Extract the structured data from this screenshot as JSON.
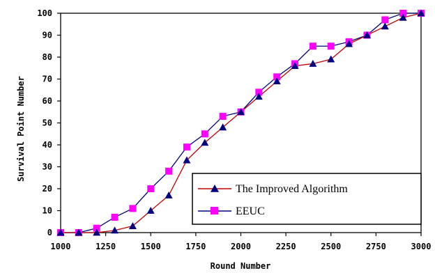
{
  "chart_data": {
    "type": "line",
    "title": "",
    "xlabel": "Round Number",
    "ylabel": "Survival Point Number",
    "xlim": [
      1000,
      3000
    ],
    "ylim": [
      0,
      100
    ],
    "x_ticks": [
      "1000",
      "1250",
      "1500",
      "1750",
      "2000",
      "2250",
      "2500",
      "2750",
      "3000"
    ],
    "x_tick_values": [
      1000,
      1250,
      1500,
      1750,
      2000,
      2250,
      2500,
      2750,
      3000
    ],
    "y_ticks": [
      "0",
      "10",
      "20",
      "30",
      "40",
      "50",
      "60",
      "70",
      "80",
      "90",
      "100"
    ],
    "y_tick_values": [
      0,
      10,
      20,
      30,
      40,
      50,
      60,
      70,
      80,
      90,
      100
    ],
    "grid": false,
    "legend_position": "bottom-right",
    "x": [
      1000,
      1100,
      1200,
      1300,
      1400,
      1500,
      1600,
      1700,
      1800,
      1900,
      2000,
      2100,
      2200,
      2300,
      2400,
      2500,
      2600,
      2700,
      2800,
      2900,
      3000
    ],
    "series": [
      {
        "name": "The Improved Algorithm",
        "color": "#c00000",
        "marker_color": "#000080",
        "marker": "triangle",
        "values": [
          0,
          0,
          0,
          1,
          3,
          10,
          17,
          33,
          41,
          48,
          55,
          62,
          69,
          76,
          77,
          79,
          86,
          90,
          94,
          98,
          100
        ]
      },
      {
        "name": "EEUC",
        "color": "#00007f",
        "marker_color": "#ff00ff",
        "marker": "square",
        "values": [
          0,
          0,
          2,
          7,
          11,
          20,
          28,
          39,
          45,
          53,
          55,
          64,
          71,
          77,
          85,
          85,
          87,
          90,
          97,
          100,
          100
        ]
      }
    ]
  }
}
